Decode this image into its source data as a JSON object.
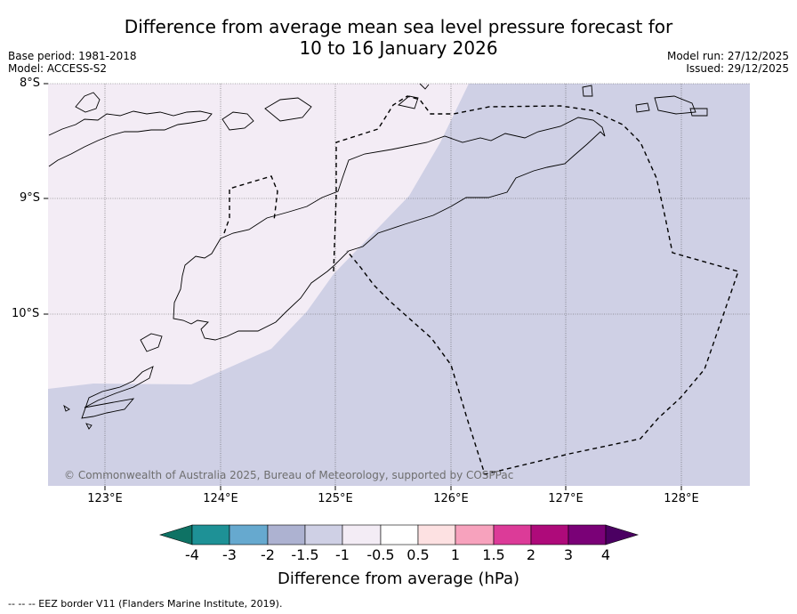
{
  "header": {
    "title_line1": "Difference from average mean sea level pressure forecast for",
    "title_line2": "10 to 16 January 2026",
    "base_period": "Base period: 1981-2018",
    "model": "Model: ACCESS-S2",
    "model_run": "Model run: 27/12/2025",
    "issued": "Issued: 29/12/2025"
  },
  "map": {
    "lat_labels": [
      "8°S",
      "9°S",
      "10°S"
    ],
    "lon_labels": [
      "123°E",
      "124°E",
      "125°E",
      "126°E",
      "127°E",
      "128°E"
    ],
    "copyright": "© Commonwealth of Australia 2025, Bureau of Meteorology, supported by COSPPac",
    "fill_colors": {
      "light": "#f3ecf5",
      "dark": "#cfd0e5"
    }
  },
  "colorbar": {
    "labels": [
      "-4",
      "-3",
      "-2",
      "-1.5",
      "-1",
      "-0.5",
      "0.5",
      "1",
      "1.5",
      "2",
      "3",
      "4"
    ],
    "colors": [
      "#0e7264",
      "#1e9196",
      "#66a9cf",
      "#adb2d1",
      "#cfd0e5",
      "#f3ecf5",
      "#ffffff",
      "#fde1e2",
      "#f7a2bd",
      "#dc3b98",
      "#ae0a7a",
      "#7a0177",
      "#4b0062"
    ],
    "title": "Difference from average (hPa)"
  },
  "footnote": "--  --  -- EEZ border V11 (Flanders Marine Institute, 2019)."
}
